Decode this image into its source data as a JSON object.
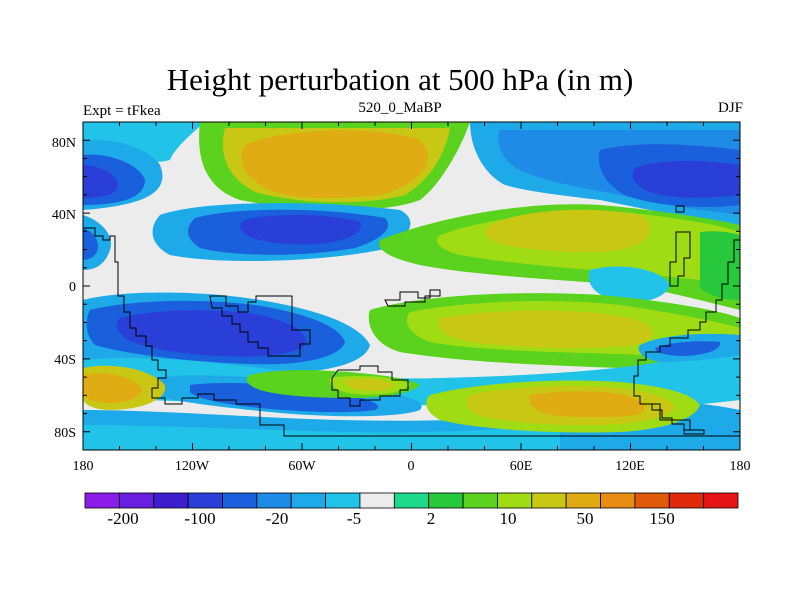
{
  "title": "Height perturbation at 500 hPa (in m)",
  "left_label": "Expt = tFkea",
  "center_label": "520_0_MaBP",
  "right_label": "DJF",
  "lat_ticks": [
    "80N",
    "40N",
    "0",
    "40S",
    "80S"
  ],
  "lon_ticks": [
    "180",
    "120W",
    "60W",
    "0",
    "60E",
    "120E",
    "180"
  ],
  "colorbar": {
    "colors": [
      "#8a1ee8",
      "#6a1ee0",
      "#3c1ecc",
      "#2a3fd8",
      "#1a5fdc",
      "#1e8ce6",
      "#1eaae8",
      "#21c3e8",
      "#ececec",
      "#1ed98c",
      "#28c83c",
      "#5ad21e",
      "#a0dc14",
      "#c8c814",
      "#e0ac14",
      "#e88c14",
      "#e05a0a",
      "#e02a0a",
      "#e61414"
    ],
    "labels": [
      "-200",
      "-100",
      "-20",
      "-5",
      "2",
      "10",
      "50",
      "150"
    ]
  }
}
